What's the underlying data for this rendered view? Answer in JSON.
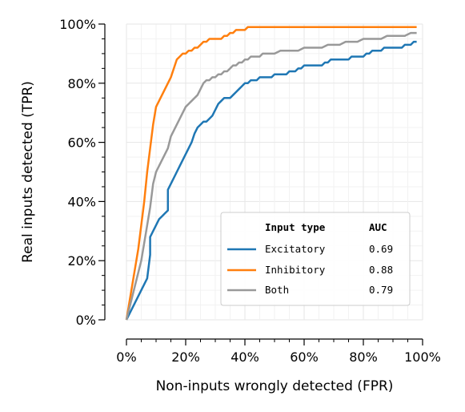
{
  "chart_data": {
    "type": "line",
    "xlabel": "Non-inputs wrongly detected (FPR)",
    "ylabel": "Real inputs detected (TPR)",
    "xlim": [
      0,
      100
    ],
    "ylim": [
      0,
      100
    ],
    "x_ticks": [
      "0%",
      "20%",
      "40%",
      "60%",
      "80%",
      "100%"
    ],
    "y_ticks": [
      "0%",
      "20%",
      "40%",
      "60%",
      "80%",
      "100%"
    ],
    "grid": true,
    "legend": {
      "placement": "bottom-right",
      "header_type": "Input type",
      "header_auc": "AUC"
    },
    "series": [
      {
        "name": "Excitatory",
        "auc": "0.69",
        "color": "#1f77b4",
        "x": [
          0,
          1,
          2,
          3,
          4,
          5,
          6,
          7,
          8,
          8,
          9,
          10,
          11,
          12,
          13,
          14,
          14,
          15,
          16,
          17,
          18,
          19,
          20,
          21,
          22,
          23,
          24,
          25,
          26,
          27,
          28,
          29,
          30,
          31,
          32,
          33,
          34,
          35,
          36,
          37,
          38,
          39,
          40,
          41,
          42,
          43,
          44,
          45,
          46,
          47,
          48,
          49,
          50,
          51,
          52,
          53,
          54,
          55,
          56,
          57,
          58,
          59,
          60,
          61,
          62,
          63,
          64,
          65,
          66,
          67,
          68,
          69,
          70,
          71,
          72,
          73,
          74,
          75,
          76,
          77,
          78,
          79,
          80,
          81,
          82,
          83,
          84,
          85,
          86,
          87,
          88,
          89,
          90,
          91,
          92,
          93,
          94,
          95,
          96,
          97,
          98
        ],
        "y": [
          0,
          2,
          4,
          6,
          8,
          10,
          12,
          14,
          22,
          28,
          30,
          32,
          34,
          35,
          36,
          37,
          44,
          46,
          48,
          50,
          52,
          54,
          56,
          58,
          60,
          63,
          65,
          66,
          67,
          67,
          68,
          69,
          71,
          73,
          74,
          75,
          75,
          75,
          76,
          77,
          78,
          79,
          80,
          80,
          81,
          81,
          81,
          82,
          82,
          82,
          82,
          82,
          83,
          83,
          83,
          83,
          83,
          84,
          84,
          84,
          85,
          85,
          86,
          86,
          86,
          86,
          86,
          86,
          86,
          87,
          87,
          88,
          88,
          88,
          88,
          88,
          88,
          88,
          89,
          89,
          89,
          89,
          89,
          90,
          90,
          91,
          91,
          91,
          91,
          92,
          92,
          92,
          92,
          92,
          92,
          92,
          93,
          93,
          93,
          94,
          94
        ]
      },
      {
        "name": "Inhibitory",
        "auc": "0.88",
        "color": "#ff7f0e",
        "x": [
          0,
          1,
          2,
          3,
          4,
          5,
          6,
          7,
          8,
          9,
          10,
          11,
          12,
          13,
          14,
          15,
          16,
          17,
          18,
          19,
          20,
          21,
          22,
          23,
          24,
          25,
          26,
          27,
          28,
          29,
          30,
          31,
          32,
          33,
          34,
          35,
          36,
          37,
          38,
          39,
          40,
          41,
          42,
          43,
          44,
          45,
          46,
          47,
          48,
          49,
          50,
          60,
          70,
          80,
          90,
          98
        ],
        "y": [
          0,
          6,
          12,
          18,
          24,
          32,
          40,
          50,
          58,
          66,
          72,
          74,
          76,
          78,
          80,
          82,
          85,
          88,
          89,
          90,
          90,
          91,
          91,
          92,
          92,
          93,
          94,
          94,
          95,
          95,
          95,
          95,
          95,
          96,
          96,
          97,
          97,
          98,
          98,
          98,
          98,
          99,
          99,
          99,
          99,
          99,
          99,
          99,
          99,
          99,
          99,
          99,
          99,
          99,
          99,
          99
        ]
      },
      {
        "name": "Both",
        "auc": "0.79",
        "color": "#999999",
        "x": [
          0,
          1,
          2,
          3,
          4,
          5,
          6,
          7,
          8,
          9,
          10,
          11,
          12,
          13,
          14,
          15,
          16,
          17,
          18,
          19,
          20,
          21,
          22,
          23,
          24,
          25,
          26,
          27,
          28,
          29,
          30,
          31,
          32,
          33,
          34,
          35,
          36,
          37,
          38,
          39,
          40,
          41,
          42,
          43,
          44,
          45,
          46,
          47,
          48,
          49,
          50,
          52,
          54,
          56,
          58,
          60,
          62,
          64,
          66,
          68,
          70,
          72,
          74,
          76,
          78,
          80,
          82,
          84,
          86,
          88,
          90,
          92,
          94,
          96,
          98
        ],
        "y": [
          0,
          4,
          8,
          12,
          16,
          20,
          26,
          32,
          38,
          46,
          50,
          52,
          54,
          56,
          58,
          62,
          64,
          66,
          68,
          70,
          72,
          73,
          74,
          75,
          76,
          78,
          80,
          81,
          81,
          82,
          82,
          83,
          83,
          84,
          84,
          85,
          86,
          86,
          87,
          87,
          88,
          88,
          89,
          89,
          89,
          89,
          90,
          90,
          90,
          90,
          90,
          91,
          91,
          91,
          91,
          92,
          92,
          92,
          92,
          93,
          93,
          93,
          94,
          94,
          94,
          95,
          95,
          95,
          95,
          96,
          96,
          96,
          96,
          97,
          97
        ]
      }
    ]
  }
}
